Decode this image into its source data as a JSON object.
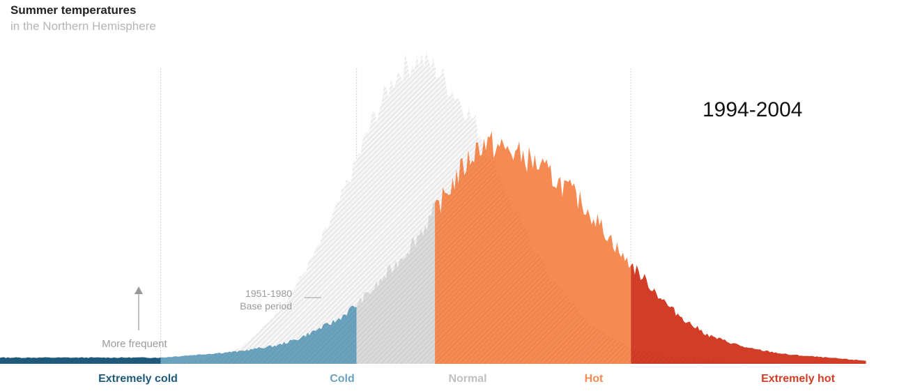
{
  "header": {
    "title": "Summer temperatures",
    "subtitle": "in the Northern Hemisphere"
  },
  "chart_data": {
    "type": "area",
    "title": "Summer temperatures",
    "subtitle": "in the Northern Hemisphere",
    "period_label": "1994-2004",
    "base_label_line1": "1951-1980",
    "base_label_line2": "Base period",
    "frequency_label": "More frequent",
    "categories": [
      {
        "label": "Extremely cold",
        "color": "#1f5a7a"
      },
      {
        "label": "Cold",
        "color": "#6ba3bf"
      },
      {
        "label": "Normal",
        "color": "#c0c0c0"
      },
      {
        "label": "Hot",
        "color": "#f58a53"
      },
      {
        "label": "Extremely hot",
        "color": "#d23d27"
      }
    ],
    "series": [
      {
        "period": "1951-1980",
        "fill": "#d9d9d9",
        "x": [
          -6.0,
          -3.0,
          -2.5,
          -2.0,
          -1.75,
          -1.5,
          -1.25,
          -1.0,
          -0.75,
          -0.5,
          -0.3,
          -0.1,
          0.0,
          0.15,
          0.3,
          0.5,
          0.75,
          1.0,
          1.25,
          1.5,
          1.75,
          2.0,
          2.5,
          3.0,
          3.5,
          4.0,
          5.0,
          6.0
        ],
        "y": [
          0.0,
          0.0,
          0.01,
          0.05,
          0.1,
          0.17,
          0.26,
          0.37,
          0.5,
          0.65,
          0.78,
          0.88,
          0.93,
          0.96,
          0.98,
          0.95,
          0.87,
          0.78,
          0.65,
          0.5,
          0.38,
          0.27,
          0.12,
          0.05,
          0.02,
          0.01,
          0.0,
          0.0
        ]
      },
      {
        "period": "1994-2004",
        "x": [
          -6.0,
          -5.0,
          -4.0,
          -3.0,
          -2.5,
          -2.0,
          -1.5,
          -1.25,
          -1.0,
          -0.75,
          -0.5,
          -0.25,
          0.0,
          0.25,
          0.5,
          0.75,
          1.0,
          1.1,
          1.25,
          1.5,
          1.75,
          2.0,
          2.25,
          2.5,
          2.75,
          2.9,
          3.0,
          3.25,
          3.5,
          3.75,
          4.0,
          4.5,
          5.0,
          5.5,
          6.0
        ],
        "y": [
          0.02,
          0.02,
          0.02,
          0.02,
          0.03,
          0.04,
          0.06,
          0.08,
          0.11,
          0.14,
          0.19,
          0.25,
          0.32,
          0.4,
          0.49,
          0.59,
          0.68,
          0.71,
          0.7,
          0.68,
          0.65,
          0.6,
          0.55,
          0.48,
          0.4,
          0.34,
          0.32,
          0.25,
          0.18,
          0.13,
          0.09,
          0.05,
          0.03,
          0.02,
          0.01
        ]
      }
    ],
    "bin_edges_sigma": [
      -3,
      -0.5,
      0.5,
      3
    ],
    "x_range": [
      -5.05,
      6.6
    ],
    "y_range": [
      0,
      1
    ]
  }
}
